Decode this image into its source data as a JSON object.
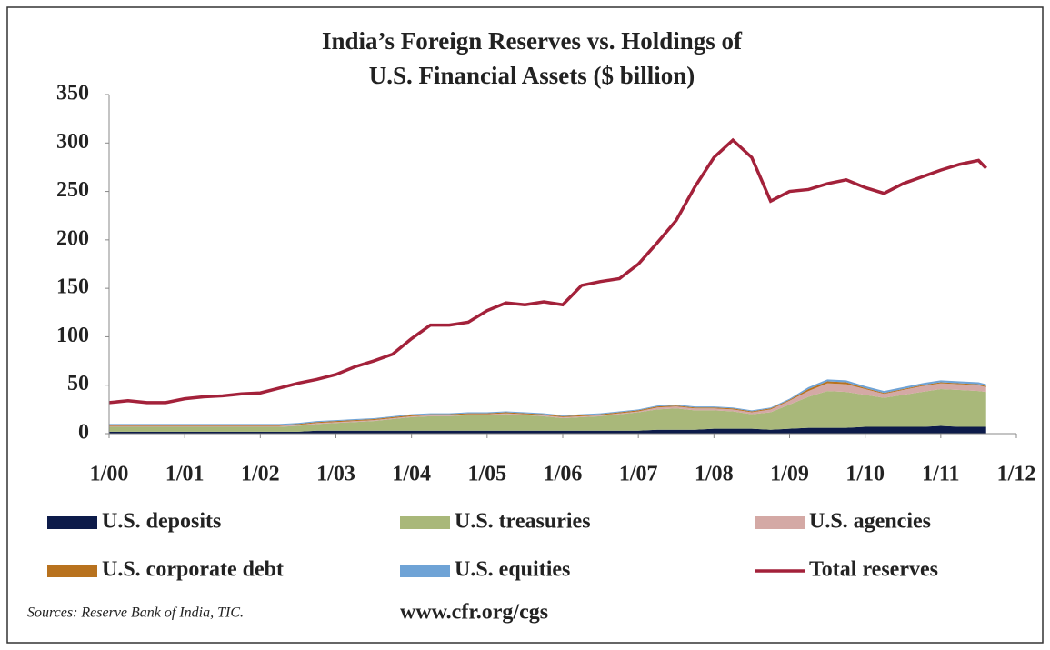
{
  "chart_data": {
    "type": "area",
    "title": [
      "India’s Foreign Reserves vs. Holdings of",
      "U.S. Financial Assets ($ billion)"
    ],
    "x": [
      2000,
      2000.25,
      2000.5,
      2000.75,
      2001,
      2001.25,
      2001.5,
      2001.75,
      2002,
      2002.25,
      2002.5,
      2002.75,
      2003,
      2003.25,
      2003.5,
      2003.75,
      2004,
      2004.25,
      2004.5,
      2004.75,
      2005,
      2005.25,
      2005.5,
      2005.75,
      2006,
      2006.25,
      2006.5,
      2006.75,
      2007,
      2007.25,
      2007.5,
      2007.75,
      2008,
      2008.25,
      2008.5,
      2008.75,
      2009,
      2009.25,
      2009.5,
      2009.75,
      2010,
      2010.25,
      2010.5,
      2010.75,
      2011,
      2011.25,
      2011.5,
      2011.6
    ],
    "xlim": [
      2000,
      2012
    ],
    "xticks": [
      {
        "value": 2000,
        "label": "1/00"
      },
      {
        "value": 2001,
        "label": "1/01"
      },
      {
        "value": 2002,
        "label": "1/02"
      },
      {
        "value": 2003,
        "label": "1/03"
      },
      {
        "value": 2004,
        "label": "1/04"
      },
      {
        "value": 2005,
        "label": "1/05"
      },
      {
        "value": 2006,
        "label": "1/06"
      },
      {
        "value": 2007,
        "label": "1/07"
      },
      {
        "value": 2008,
        "label": "1/08"
      },
      {
        "value": 2009,
        "label": "1/09"
      },
      {
        "value": 2010,
        "label": "1/10"
      },
      {
        "value": 2011,
        "label": "1/11"
      },
      {
        "value": 2012,
        "label": "1/12"
      }
    ],
    "ylim": [
      0,
      350
    ],
    "yticks": [
      0,
      50,
      100,
      150,
      200,
      250,
      300,
      350
    ],
    "series": [
      {
        "name": "U.S. deposits",
        "type": "area",
        "color": "#0d1b4a",
        "values": [
          2,
          2,
          2,
          2,
          2,
          2,
          2,
          2,
          2,
          2,
          2,
          3,
          3,
          3,
          3,
          3,
          3,
          3,
          3,
          3,
          3,
          3,
          3,
          3,
          3,
          3,
          3,
          3,
          3,
          4,
          4,
          4,
          5,
          5,
          5,
          4,
          5,
          6,
          6,
          6,
          7,
          7,
          7,
          7,
          8,
          7,
          7,
          7
        ]
      },
      {
        "name": "U.S. treasuries",
        "type": "area",
        "color": "#a9b87a",
        "values": [
          5,
          5,
          5,
          5,
          5,
          5,
          5,
          5,
          5,
          5,
          6,
          7,
          8,
          9,
          10,
          12,
          14,
          15,
          15,
          16,
          16,
          17,
          16,
          15,
          13,
          14,
          15,
          17,
          19,
          21,
          22,
          20,
          19,
          18,
          15,
          18,
          25,
          32,
          38,
          37,
          33,
          30,
          33,
          36,
          38,
          38,
          37,
          36
        ]
      },
      {
        "name": "U.S. agencies",
        "type": "area",
        "color": "#d4a9a5",
        "values": [
          1,
          1,
          1,
          1,
          1,
          1,
          1,
          1,
          1,
          1,
          1,
          1,
          1,
          1,
          1,
          1,
          1,
          1,
          1,
          1,
          1,
          1,
          1,
          1,
          1,
          1,
          1,
          1,
          1,
          2,
          2,
          2,
          2,
          2,
          2,
          3,
          4,
          6,
          8,
          8,
          6,
          4,
          5,
          6,
          6,
          6,
          6,
          5
        ]
      },
      {
        "name": "U.S. corporate debt",
        "type": "area",
        "color": "#b8721e",
        "values": [
          1,
          1,
          1,
          1,
          1,
          1,
          1,
          1,
          1,
          1,
          1,
          1,
          1,
          1,
          1,
          1,
          1,
          1,
          1,
          1,
          1,
          1,
          1,
          1,
          1,
          1,
          1,
          1,
          1,
          1,
          1,
          1,
          1,
          1,
          1,
          1,
          1,
          2,
          2,
          2,
          1,
          1,
          1,
          1,
          1,
          1,
          1,
          1
        ]
      },
      {
        "name": "U.S. equities",
        "type": "area",
        "color": "#6fa3d6",
        "values": [
          1,
          1,
          1,
          1,
          1,
          1,
          1,
          1,
          1,
          1,
          1,
          1,
          1,
          1,
          1,
          1,
          1,
          1,
          1,
          1,
          1,
          1,
          1,
          1,
          1,
          1,
          1,
          1,
          1,
          1,
          1,
          1,
          1,
          1,
          1,
          1,
          1,
          2,
          2,
          2,
          2,
          2,
          2,
          2,
          2,
          2,
          2,
          2
        ]
      },
      {
        "name": "Total reserves",
        "type": "line",
        "color": "#a3213a",
        "values": [
          32,
          34,
          32,
          32,
          36,
          38,
          39,
          41,
          42,
          47,
          52,
          56,
          61,
          69,
          75,
          82,
          98,
          112,
          112,
          115,
          127,
          135,
          133,
          136,
          133,
          153,
          157,
          160,
          175,
          197,
          220,
          255,
          285,
          303,
          285,
          240,
          250,
          252,
          258,
          262,
          254,
          248,
          258,
          265,
          272,
          278,
          282,
          274
        ]
      }
    ],
    "source": "Sources: Reserve Bank of India, TIC.",
    "url": "www.cfr.org/cgs"
  }
}
